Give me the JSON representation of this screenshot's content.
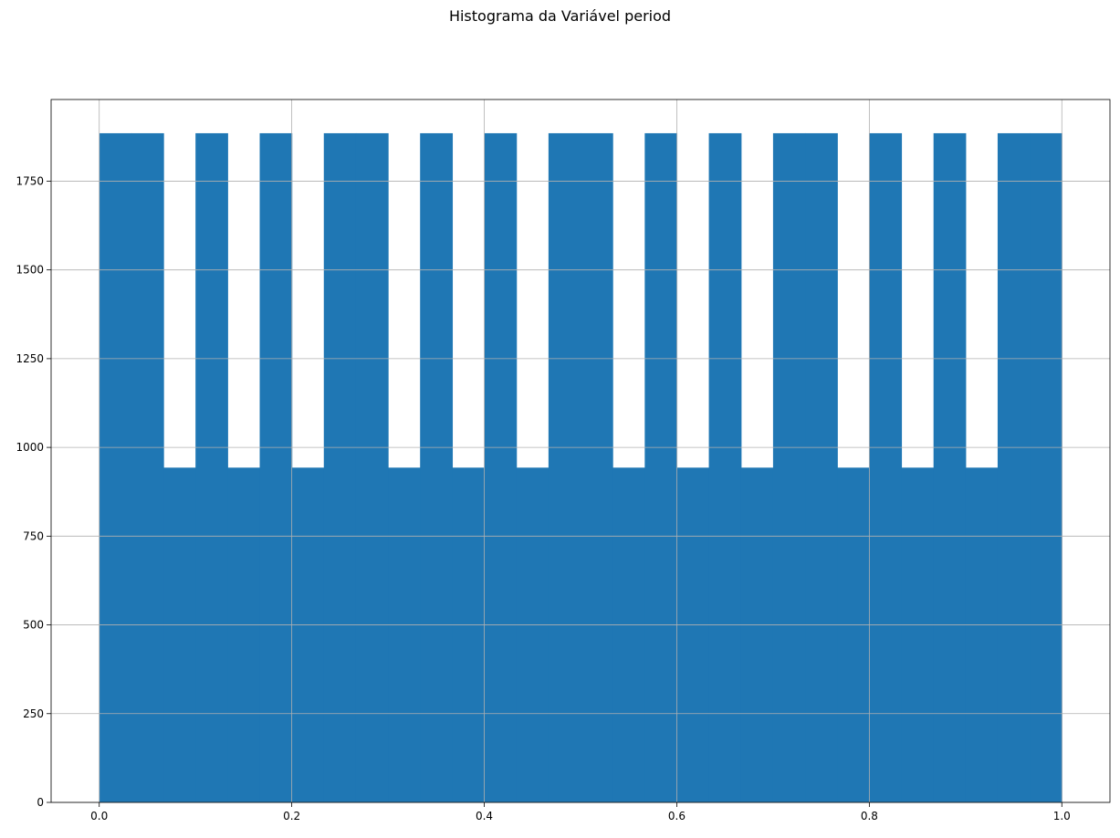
{
  "chart_data": {
    "type": "bar",
    "title": "Histograma da Variável period",
    "xlabel": "",
    "ylabel": "",
    "xlim": [
      -0.05,
      1.05
    ],
    "ylim": [
      0,
      1980
    ],
    "xticks": [
      0.0,
      0.2,
      0.4,
      0.6,
      0.8,
      1.0
    ],
    "xtick_labels": [
      "0.0",
      "0.2",
      "0.4",
      "0.6",
      "0.8",
      "1.0"
    ],
    "yticks": [
      0,
      250,
      500,
      750,
      1000,
      1250,
      1500,
      1750
    ],
    "ytick_labels": [
      "0",
      "250",
      "500",
      "750",
      "1000",
      "1250",
      "1500",
      "1750"
    ],
    "grid": true,
    "bar_color": "#1f77b4",
    "bin_edges": [
      0.0,
      0.0333,
      0.0667,
      0.1,
      0.1333,
      0.1667,
      0.2,
      0.2333,
      0.2667,
      0.3,
      0.3333,
      0.3667,
      0.4,
      0.4333,
      0.4667,
      0.5,
      0.5333,
      0.5667,
      0.6,
      0.6333,
      0.6667,
      0.7,
      0.7333,
      0.7667,
      0.8,
      0.8333,
      0.8667,
      0.9,
      0.9333,
      0.9667,
      1.0
    ],
    "values": [
      1885,
      1885,
      943,
      1885,
      943,
      1885,
      943,
      1885,
      1885,
      943,
      1885,
      943,
      1885,
      943,
      1885,
      1885,
      943,
      1885,
      943,
      1885,
      943,
      1885,
      1885,
      943,
      1885,
      943,
      1885,
      943,
      1885,
      1885
    ]
  }
}
